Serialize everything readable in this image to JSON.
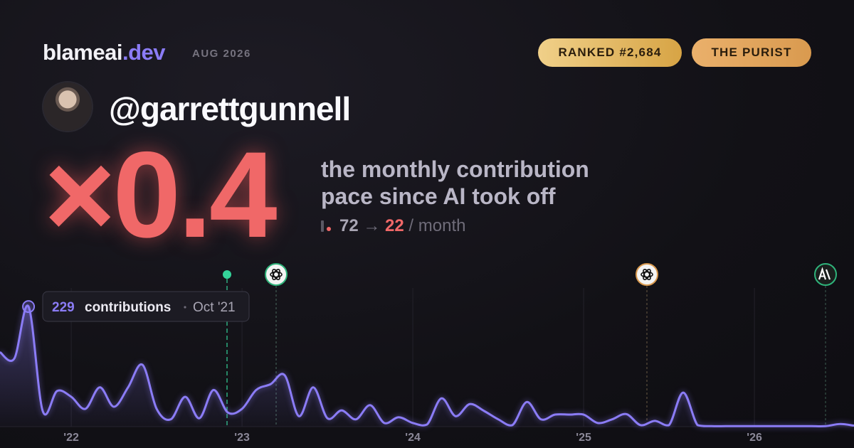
{
  "header": {
    "brand_name": "blameai",
    "brand_tld": ".dev",
    "date": "AUG 2026",
    "badges": [
      "RANKED #2,684",
      "THE PURIST"
    ]
  },
  "profile": {
    "handle": "@garrettgunnell"
  },
  "stat": {
    "multiplier": "×0.4",
    "description": "the monthly contribution pace since AI took off",
    "before": 72,
    "arrow": "→",
    "after": 22,
    "unit": "/ month"
  },
  "chart_data": {
    "type": "area",
    "x": [
      2021.583,
      2021.667,
      2021.75,
      2021.833,
      2021.917,
      2022.0,
      2022.083,
      2022.167,
      2022.25,
      2022.333,
      2022.417,
      2022.5,
      2022.583,
      2022.667,
      2022.75,
      2022.833,
      2022.917,
      2023.0,
      2023.083,
      2023.167,
      2023.25,
      2023.333,
      2023.417,
      2023.5,
      2023.583,
      2023.667,
      2023.75,
      2023.833,
      2023.917,
      2024.0,
      2024.083,
      2024.167,
      2024.25,
      2024.333,
      2024.417,
      2024.5,
      2024.583,
      2024.667,
      2024.75,
      2024.833,
      2024.917,
      2025.0,
      2025.083,
      2025.167,
      2025.25,
      2025.333,
      2025.417,
      2025.5,
      2025.583,
      2025.667,
      2025.75,
      2025.833,
      2025.917,
      2026.0,
      2026.083,
      2026.167,
      2026.25,
      2026.333,
      2026.417,
      2026.5,
      2026.583
    ],
    "series": [
      {
        "color": "#8b7cf6",
        "values": [
          142,
          130,
          229,
          30,
          68,
          57,
          34,
          75,
          38,
          75,
          118,
          34,
          14,
          57,
          16,
          70,
          27,
          34,
          70,
          81,
          98,
          20,
          75,
          16,
          31,
          14,
          41,
          7,
          18,
          7,
          4,
          54,
          20,
          43,
          30,
          14,
          3,
          47,
          14,
          23,
          23,
          23,
          7,
          14,
          24,
          3,
          11,
          3,
          65,
          3,
          1,
          1,
          1,
          1,
          1,
          1,
          1,
          1,
          1,
          5,
          2
        ]
      }
    ],
    "tooltip": {
      "unit": "contributions",
      "date": "Oct '21"
    },
    "xlim": [
      2021.583,
      2026.583
    ],
    "xticks": [
      {
        "value": 2022,
        "label": "'22"
      },
      {
        "value": 2023,
        "label": "'23"
      },
      {
        "value": 2024,
        "label": "'24"
      },
      {
        "value": 2025,
        "label": "'25"
      },
      {
        "value": 2026,
        "label": "'26"
      }
    ],
    "ylim": [
      0,
      240
    ],
    "grid": true
  }
}
